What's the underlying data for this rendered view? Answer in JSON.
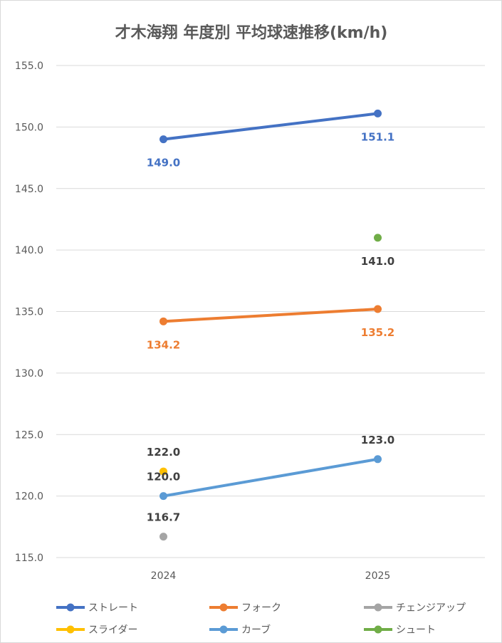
{
  "chart_data": {
    "type": "line",
    "title": "才木海翔 年度別 平均球速推移(km/h)",
    "xlabel": "",
    "ylabel": "",
    "categories": [
      "2024",
      "2025"
    ],
    "ylim": [
      115,
      155
    ],
    "yticks": [
      "115.0",
      "120.0",
      "125.0",
      "130.0",
      "135.0",
      "140.0",
      "145.0",
      "150.0",
      "155.0"
    ],
    "grid": true,
    "legend_position": "bottom",
    "series": [
      {
        "name": "ストレート",
        "values": [
          149.0,
          151.1
        ],
        "labels": [
          "149.0",
          "151.1"
        ],
        "color": "#4472C4",
        "label_pos": "below"
      },
      {
        "name": "フォーク",
        "values": [
          134.2,
          135.2
        ],
        "labels": [
          "134.2",
          "135.2"
        ],
        "color": "#ED7D31",
        "label_pos": "below"
      },
      {
        "name": "チェンジアップ",
        "values": [
          116.7,
          null
        ],
        "labels": [
          "116.7",
          null
        ],
        "color": "#A5A5A5",
        "label_pos": "above",
        "label_color": "#404040"
      },
      {
        "name": "スライダー",
        "values": [
          122.0,
          null
        ],
        "labels": [
          "122.0",
          null
        ],
        "color": "#FFC000",
        "label_pos": "above",
        "label_color": "#404040"
      },
      {
        "name": "カーブ",
        "values": [
          120.0,
          123.0
        ],
        "labels": [
          "120.0",
          "123.0"
        ],
        "color": "#5B9BD5",
        "label_pos": "above",
        "label_color": "#404040"
      },
      {
        "name": "シュート",
        "values": [
          null,
          141.0
        ],
        "labels": [
          null,
          "141.0"
        ],
        "color": "#70AD47",
        "label_pos": "below",
        "label_color": "#404040"
      }
    ]
  }
}
